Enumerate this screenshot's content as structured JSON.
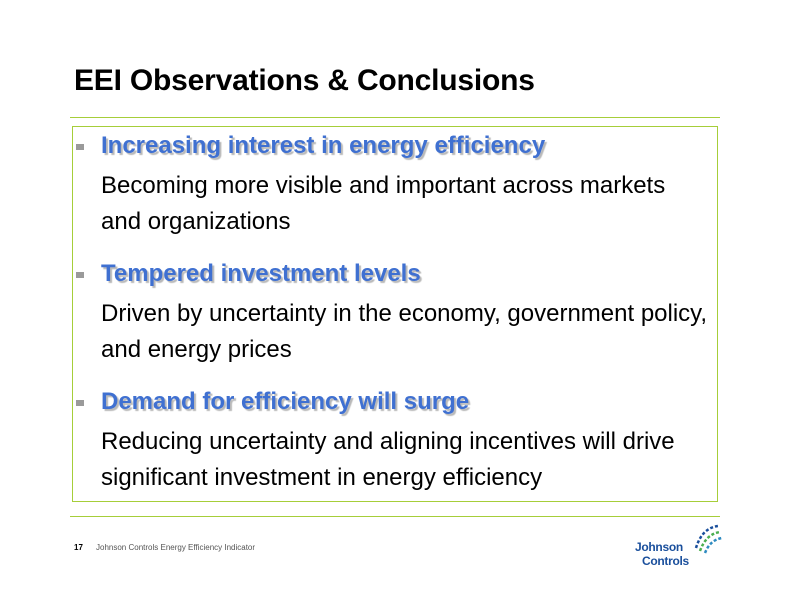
{
  "title": "EEI Observations & Conclusions",
  "bullets": [
    {
      "heading": "Increasing interest in energy efficiency",
      "body": "Becoming more visible and important across markets and organizations"
    },
    {
      "heading": "Tempered investment levels",
      "body": "Driven by uncertainty in the economy, government policy, and energy prices"
    },
    {
      "heading": "Demand for efficiency will surge",
      "body": "Reducing uncertainty and aligning incentives will drive significant investment in energy efficiency"
    }
  ],
  "footer": {
    "page_number": "17",
    "text": "Johnson Controls Energy Efficiency Indicator"
  },
  "logo": {
    "line1": "Johnson",
    "line2": "Controls",
    "icon": "johnson-controls-wave-icon"
  },
  "colors": {
    "accent_green": "#a6ce39",
    "heading_blue": "#3f70d1",
    "logo_blue": "#1a4f9c",
    "logo_green": "#4caf50"
  }
}
